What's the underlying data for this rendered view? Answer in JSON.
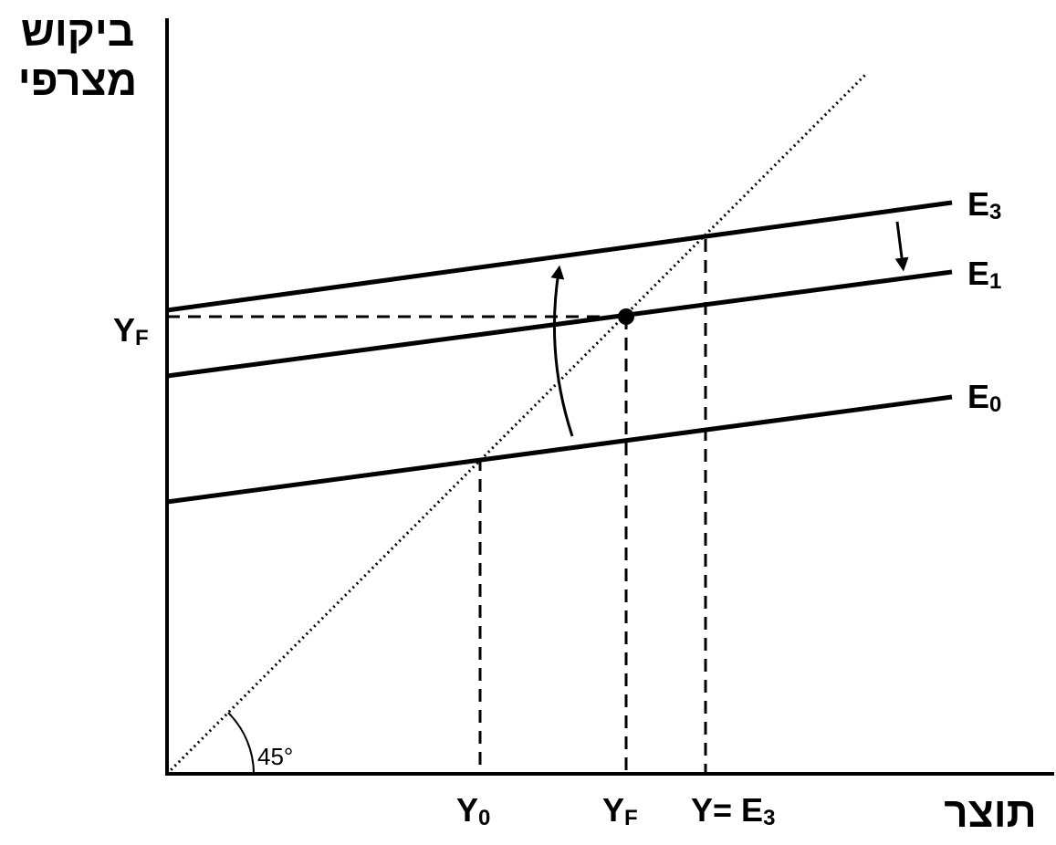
{
  "axis_labels": {
    "y": [
      "ביקוש",
      "מצרפי"
    ],
    "x": "תוצר"
  },
  "lines": [
    {
      "name": {
        "base": "E",
        "sub": "3"
      }
    },
    {
      "name": {
        "base": "E",
        "sub": "1"
      }
    },
    {
      "name": {
        "base": "E",
        "sub": "0"
      }
    }
  ],
  "y_axis_marker": {
    "base": "Y",
    "sub": "F"
  },
  "x_axis_markers": [
    {
      "base": "Y",
      "sub": "0"
    },
    {
      "base": "Y",
      "sub": "F"
    },
    {
      "base": "Y= E",
      "sub": "3"
    }
  ],
  "angle_label": "45°"
}
